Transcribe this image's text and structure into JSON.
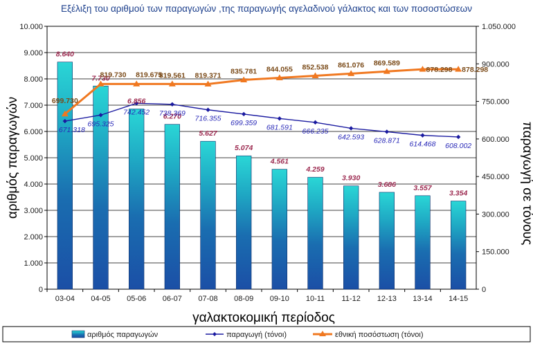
{
  "chart_data": {
    "type": "bar+line",
    "title": "Εξέλιξη του αριθμού των παραγωγών ,της παραγωγής αγελαδινού γάλακτος  και των ποσοστώσεων",
    "xlabel": "γαλακτοκομική περίοδος",
    "ylabel_left": "αριθμός παραγωγών",
    "ylabel_right": "παραγωγή σε τόνους",
    "categories": [
      "03-04",
      "04-05",
      "05-06",
      "06-07",
      "07-08",
      "08-09",
      "09-10",
      "10-11",
      "11-12",
      "12-13",
      "13-14",
      "14-15"
    ],
    "y_left": {
      "range": [
        0,
        10000
      ],
      "ticks": [
        "0",
        "1.000",
        "2.000",
        "3.000",
        "4.000",
        "5.000",
        "6.000",
        "7.000",
        "8.000",
        "9.000",
        "10.000"
      ]
    },
    "y_right": {
      "range": [
        0,
        1050000
      ],
      "ticks": [
        "0",
        "150.000",
        "300.000",
        "450.000",
        "600.000",
        "750.000",
        "900.000",
        "1.050.000"
      ]
    },
    "grid": true,
    "legend_position": "bottom",
    "series": [
      {
        "name": "αριθμός παραγωγών",
        "type": "bar",
        "axis": "left",
        "values": [
          8640,
          7730,
          6856,
          6270,
          5627,
          5074,
          4561,
          4259,
          3930,
          3686,
          3557,
          3354
        ],
        "labels": [
          "8.640",
          "7.730",
          "6.856",
          "6.270",
          "5.627",
          "5.074",
          "4.561",
          "4.259",
          "3.930",
          "3.686",
          "3.557",
          "3.354"
        ],
        "color": "#1c5aa8"
      },
      {
        "name": "παραγωγή (τόνοι)",
        "type": "line",
        "axis": "right",
        "values": [
          671318,
          695325,
          742452,
          738369,
          716355,
          699359,
          681591,
          666235,
          642593,
          628871,
          614468,
          608002
        ],
        "labels": [
          "671.318",
          "695.325",
          "742.452",
          "738.369",
          "716.355",
          "699.359",
          "681.591",
          "666.235",
          "642.593",
          "628.871",
          "614.468",
          "608.002"
        ],
        "color": "#1a1aa0"
      },
      {
        "name": "εθνική  ποσόστωση (τόνοι)",
        "type": "line",
        "axis": "right",
        "values": [
          699730,
          819730,
          819675,
          819561,
          819371,
          835781,
          844055,
          852538,
          861076,
          869589,
          878298,
          878298
        ],
        "labels": [
          "699.730",
          "819.730",
          "819.675",
          "819.561",
          "819.371",
          "835.781",
          "844.055",
          "852.538",
          "861.076",
          "869.589",
          "878.298",
          "878.298"
        ],
        "color": "#f07820"
      }
    ],
    "colors": {
      "title": "#1c3f8c",
      "bar_label": "#9c2a50",
      "production_label": "#2a2ab8",
      "quota_label": "#7a4a18",
      "axis_text": "#1a1a1a"
    }
  }
}
